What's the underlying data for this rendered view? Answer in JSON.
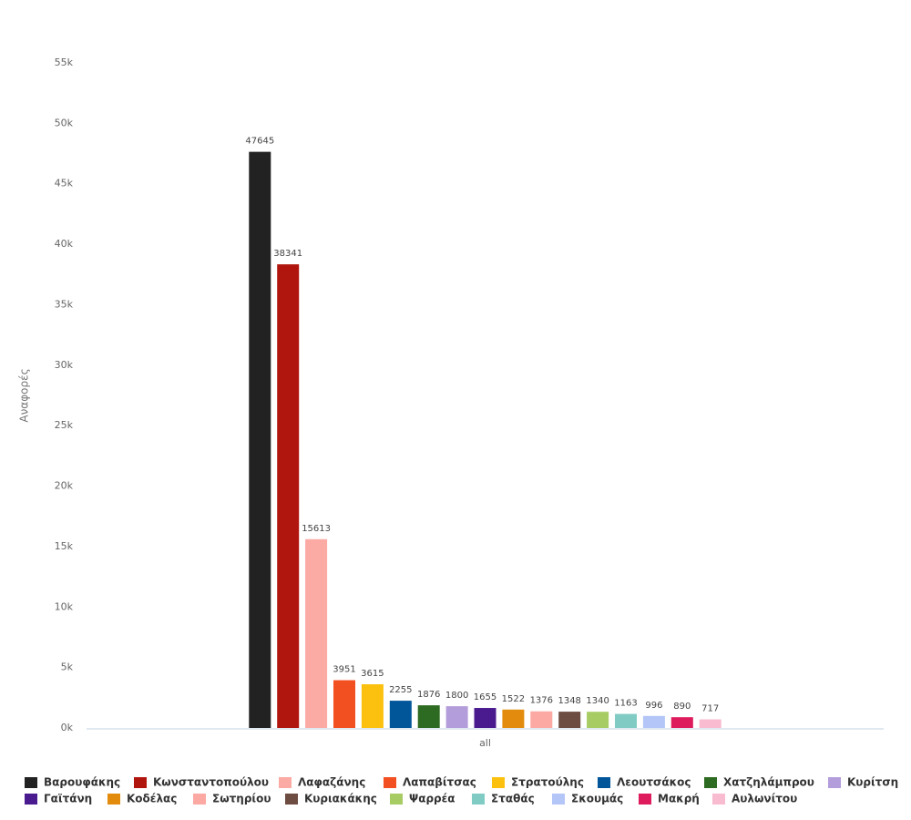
{
  "chart_data": {
    "type": "bar",
    "y_label": "Αναφορές",
    "categories": [
      "all"
    ],
    "ylim": [
      0,
      55000
    ],
    "yticks": [
      {
        "value": 0,
        "label": "0k"
      },
      {
        "value": 5000,
        "label": "5k"
      },
      {
        "value": 10000,
        "label": "10k"
      },
      {
        "value": 15000,
        "label": "15k"
      },
      {
        "value": 20000,
        "label": "20k"
      },
      {
        "value": 25000,
        "label": "25k"
      },
      {
        "value": 30000,
        "label": "30k"
      },
      {
        "value": 35000,
        "label": "35k"
      },
      {
        "value": 40000,
        "label": "40k"
      },
      {
        "value": 45000,
        "label": "45k"
      },
      {
        "value": 50000,
        "label": "50k"
      },
      {
        "value": 55000,
        "label": "55k"
      }
    ],
    "series": [
      {
        "name": "Βαρουφάκης",
        "color": "#222222",
        "values": [
          47645
        ]
      },
      {
        "name": "Κωνσταντοπούλου",
        "color": "#b0160e",
        "values": [
          38341
        ]
      },
      {
        "name": "Λαφαζάνης",
        "color": "#fbaaa4",
        "values": [
          15613
        ]
      },
      {
        "name": "Λαπαβίτσας",
        "color": "#f25020",
        "values": [
          3951
        ]
      },
      {
        "name": "Στρατούλης",
        "color": "#fcc10f",
        "values": [
          3615
        ]
      },
      {
        "name": "Λεουτσάκος",
        "color": "#015699",
        "values": [
          2255
        ]
      },
      {
        "name": "Χατζηλάμπρου",
        "color": "#2e6b22",
        "values": [
          1876
        ]
      },
      {
        "name": "Κυρίτση",
        "color": "#b39ddb",
        "values": [
          1800
        ]
      },
      {
        "name": "Γαϊτάνη",
        "color": "#4a1a8f",
        "values": [
          1655
        ]
      },
      {
        "name": "Κοδέλας",
        "color": "#e38b0c",
        "values": [
          1522
        ]
      },
      {
        "name": "Σωτηρίου",
        "color": "#fba9a2",
        "values": [
          1376
        ]
      },
      {
        "name": "Κυριακάκης",
        "color": "#6d4c41",
        "values": [
          1348
        ]
      },
      {
        "name": "Ψαρρέα",
        "color": "#a6cc63",
        "values": [
          1340
        ]
      },
      {
        "name": "Σταθάς",
        "color": "#80cbc4",
        "values": [
          1163
        ]
      },
      {
        "name": "Σκουμάς",
        "color": "#b3c6f7",
        "values": [
          996
        ]
      },
      {
        "name": "Μακρή",
        "color": "#de1b5c",
        "values": [
          890
        ]
      },
      {
        "name": "Αυλωνίτου",
        "color": "#f8bbd0",
        "values": [
          717
        ]
      }
    ]
  }
}
